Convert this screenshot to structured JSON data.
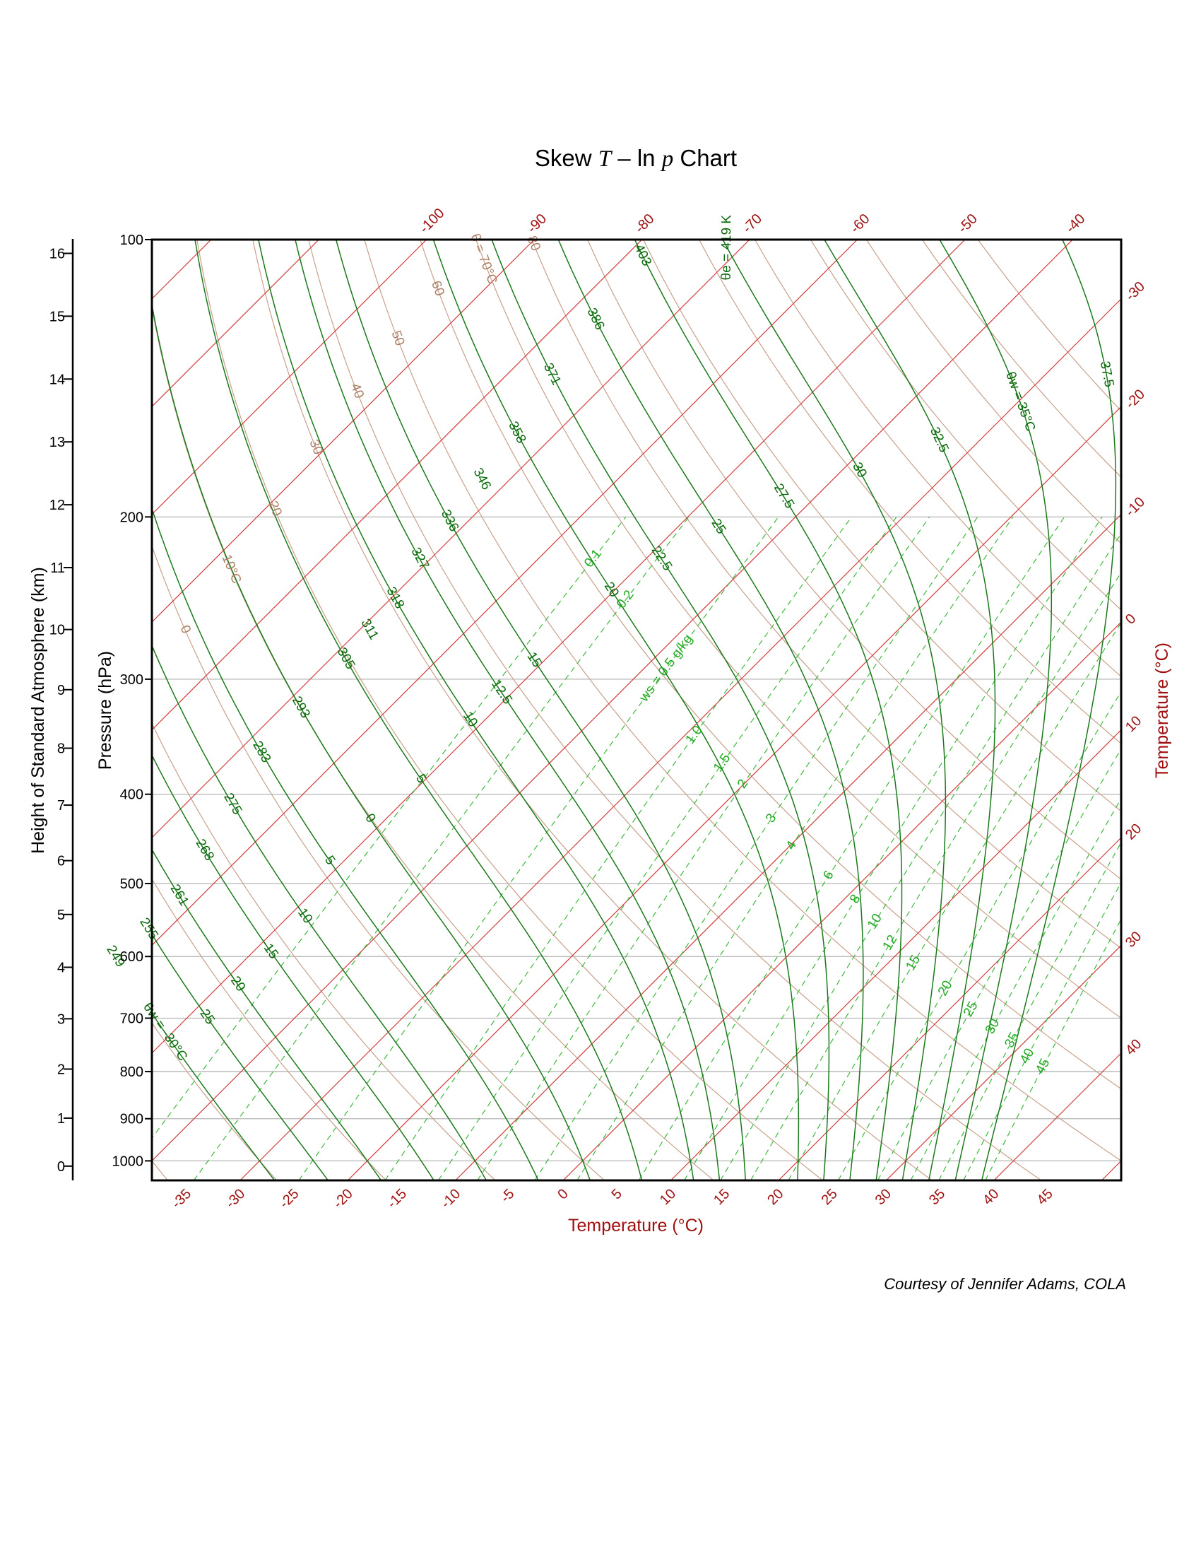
{
  "chart_data": {
    "type": "skew-t-log-p",
    "title_prefix": "Skew ",
    "title_var1": "T",
    "title_mid": " – ln ",
    "title_var2": "p",
    "title_suffix": " Chart",
    "xlabel": "Temperature (°C)",
    "ylabel_pressure": "Pressure (hPa)",
    "ylabel_height": "Height of Standard Atmosphere (km)",
    "right_label": "Temperature (°C)",
    "credit": "Courtesy of Jennifer Adams, COLA",
    "pressure_range": [
      1050,
      100
    ],
    "bottom_temperature_range": [
      -40,
      50
    ],
    "pressure_ticks": [
      100,
      200,
      300,
      400,
      500,
      600,
      700,
      800,
      900,
      1000
    ],
    "height_ticks_km": [
      {
        "km": 0,
        "p": 1013.25
      },
      {
        "km": 1,
        "p": 898.7
      },
      {
        "km": 2,
        "p": 795.0
      },
      {
        "km": 3,
        "p": 701.1
      },
      {
        "km": 4,
        "p": 616.4
      },
      {
        "km": 5,
        "p": 540.2
      },
      {
        "km": 6,
        "p": 472.2
      },
      {
        "km": 7,
        "p": 411.0
      },
      {
        "km": 8,
        "p": 356.5
      },
      {
        "km": 9,
        "p": 308.0
      },
      {
        "km": 10,
        "p": 265.0
      },
      {
        "km": 11,
        "p": 227.0
      },
      {
        "km": 12,
        "p": 194.0
      },
      {
        "km": 13,
        "p": 165.8
      },
      {
        "km": 14,
        "p": 141.7
      },
      {
        "km": 15,
        "p": 121.1
      },
      {
        "km": 16,
        "p": 103.5
      }
    ],
    "bottom_temp_ticks": [
      -35,
      -30,
      -25,
      -20,
      -15,
      -10,
      -5,
      0,
      5,
      10,
      15,
      20,
      25,
      30,
      35,
      40,
      45
    ],
    "top_temp_ticks": [
      -100,
      -90,
      -80,
      -70,
      -60,
      -50,
      -40
    ],
    "right_temp_ticks": [
      -30,
      -20,
      -10,
      0,
      10,
      20,
      30,
      40
    ],
    "isotherms_celsius": [
      -160,
      -150,
      -140,
      -130,
      -120,
      -110,
      -100,
      -90,
      -80,
      -70,
      -60,
      -50,
      -40,
      -30,
      -20,
      -10,
      0,
      10,
      20,
      30,
      40,
      50
    ],
    "dry_adiabats_theta_c": [
      -40,
      -30,
      -20,
      -10,
      0,
      10,
      20,
      30,
      40,
      50,
      60,
      70,
      80,
      90,
      100,
      110,
      120,
      130,
      140,
      150,
      160
    ],
    "dry_adiabat_labels": [
      {
        "text": "0",
        "theta": 0,
        "p": 265
      },
      {
        "text": "10°C",
        "theta": 10,
        "p": 228
      },
      {
        "text": "20",
        "theta": 20,
        "p": 196
      },
      {
        "text": "30",
        "theta": 30,
        "p": 168
      },
      {
        "text": "40",
        "theta": 40,
        "p": 146
      },
      {
        "text": "50",
        "theta": 50,
        "p": 128
      },
      {
        "text": "60",
        "theta": 60,
        "p": 113
      },
      {
        "text": "θ = 70°C",
        "theta": 70,
        "p": 105
      },
      {
        "text": "80",
        "theta": 80,
        "p": 101
      }
    ],
    "moist_adiabats_thetaw_c": [
      -30,
      -25,
      -20,
      -15,
      -10,
      -5,
      0,
      5,
      10,
      12.5,
      15,
      20,
      22.5,
      25,
      27.5,
      30,
      32.5,
      35,
      37.5
    ],
    "moist_adiabat_labels": [
      {
        "text": "θw = -30°C",
        "thetaw": -30,
        "p": 725
      },
      {
        "text": "-25",
        "thetaw": -25,
        "p": 695
      },
      {
        "text": "-20",
        "thetaw": -20,
        "p": 640
      },
      {
        "text": "-15",
        "thetaw": -15,
        "p": 590
      },
      {
        "text": "-10",
        "thetaw": -10,
        "p": 540
      },
      {
        "text": "-5",
        "thetaw": -5,
        "p": 470
      },
      {
        "text": "0",
        "thetaw": 0,
        "p": 425
      },
      {
        "text": "5",
        "thetaw": 5,
        "p": 385
      },
      {
        "text": "10",
        "thetaw": 10,
        "p": 332
      },
      {
        "text": "12.5",
        "thetaw": 12.5,
        "p": 310
      },
      {
        "text": "15",
        "thetaw": 15,
        "p": 286
      },
      {
        "text": "20",
        "thetaw": 20,
        "p": 240
      },
      {
        "text": "22.5",
        "thetaw": 22.5,
        "p": 222
      },
      {
        "text": "25",
        "thetaw": 25,
        "p": 205
      },
      {
        "text": "27.5",
        "thetaw": 27.5,
        "p": 190
      },
      {
        "text": "30",
        "thetaw": 30,
        "p": 178
      },
      {
        "text": "32.5",
        "thetaw": 32.5,
        "p": 165
      },
      {
        "text": "θw = 35°C",
        "thetaw": 35,
        "p": 150
      },
      {
        "text": "37.5",
        "thetaw": 37.5,
        "p": 140
      }
    ],
    "equiv_theta_labels": [
      {
        "text": "249",
        "thetaw": -30,
        "p": 600
      },
      {
        "text": "255",
        "thetaw": -25,
        "p": 560
      },
      {
        "text": "261",
        "thetaw": -20,
        "p": 515
      },
      {
        "text": "268",
        "thetaw": -15,
        "p": 460
      },
      {
        "text": "275",
        "thetaw": -10,
        "p": 410
      },
      {
        "text": "283",
        "thetaw": -5,
        "p": 360
      },
      {
        "text": "293",
        "thetaw": 0,
        "p": 322
      },
      {
        "text": "305",
        "thetaw": 5,
        "p": 285
      },
      {
        "text": "311",
        "thetaw": 7.5,
        "p": 265
      },
      {
        "text": "318",
        "thetaw": 10,
        "p": 245
      },
      {
        "text": "327",
        "thetaw": 12.5,
        "p": 222
      },
      {
        "text": "336",
        "thetaw": 15,
        "p": 202
      },
      {
        "text": "346",
        "thetaw": 17.5,
        "p": 182
      },
      {
        "text": "358",
        "thetaw": 20,
        "p": 162
      },
      {
        "text": "371",
        "thetaw": 22.5,
        "p": 140
      },
      {
        "text": "386",
        "thetaw": 25,
        "p": 122
      },
      {
        "text": "403",
        "thetaw": 27.5,
        "p": 104
      },
      {
        "text": "θe = 419 K",
        "thetaw": 30,
        "p": 102
      }
    ],
    "mixing_ratios_g_per_kg": [
      0.1,
      0.2,
      0.5,
      1.0,
      1.5,
      2,
      3,
      4,
      6,
      8,
      10,
      12,
      15,
      20,
      25,
      30,
      35,
      40,
      45
    ],
    "mixing_ratio_labels": [
      {
        "text": "0.1",
        "w": 0.1,
        "p": 222
      },
      {
        "text": "0.2",
        "w": 0.2,
        "p": 246
      },
      {
        "text": "ws = 0.5 g/kg",
        "w": 0.5,
        "p": 292
      },
      {
        "text": "1.0",
        "w": 1.0,
        "p": 345
      },
      {
        "text": "1.5",
        "w": 1.5,
        "p": 370
      },
      {
        "text": "2",
        "w": 2,
        "p": 390
      },
      {
        "text": "3",
        "w": 3,
        "p": 425
      },
      {
        "text": "4",
        "w": 4,
        "p": 455
      },
      {
        "text": "6",
        "w": 6,
        "p": 490
      },
      {
        "text": "8",
        "w": 8,
        "p": 520
      },
      {
        "text": "10",
        "w": 10,
        "p": 550
      },
      {
        "text": "12",
        "w": 12,
        "p": 580
      },
      {
        "text": "15",
        "w": 15,
        "p": 610
      },
      {
        "text": "20",
        "w": 20,
        "p": 650
      },
      {
        "text": "25",
        "w": 25,
        "p": 685
      },
      {
        "text": "30",
        "w": 30,
        "p": 715
      },
      {
        "text": "35",
        "w": 35,
        "p": 740
      },
      {
        "text": "40",
        "w": 40,
        "p": 770
      },
      {
        "text": "45",
        "w": 45,
        "p": 790
      }
    ],
    "colors": {
      "isotherm": "#d23c3c",
      "dry_adiabat": "#c8a08c",
      "moist_adiabat": "#1a7a1a",
      "mixing_ratio": "#3cb83c",
      "isobar": "#b4b4b4",
      "axis_red": "#a01010",
      "label_dark_green": "#0a6a0a",
      "label_light_green": "#22aa22",
      "label_tan": "#b0826a"
    }
  }
}
